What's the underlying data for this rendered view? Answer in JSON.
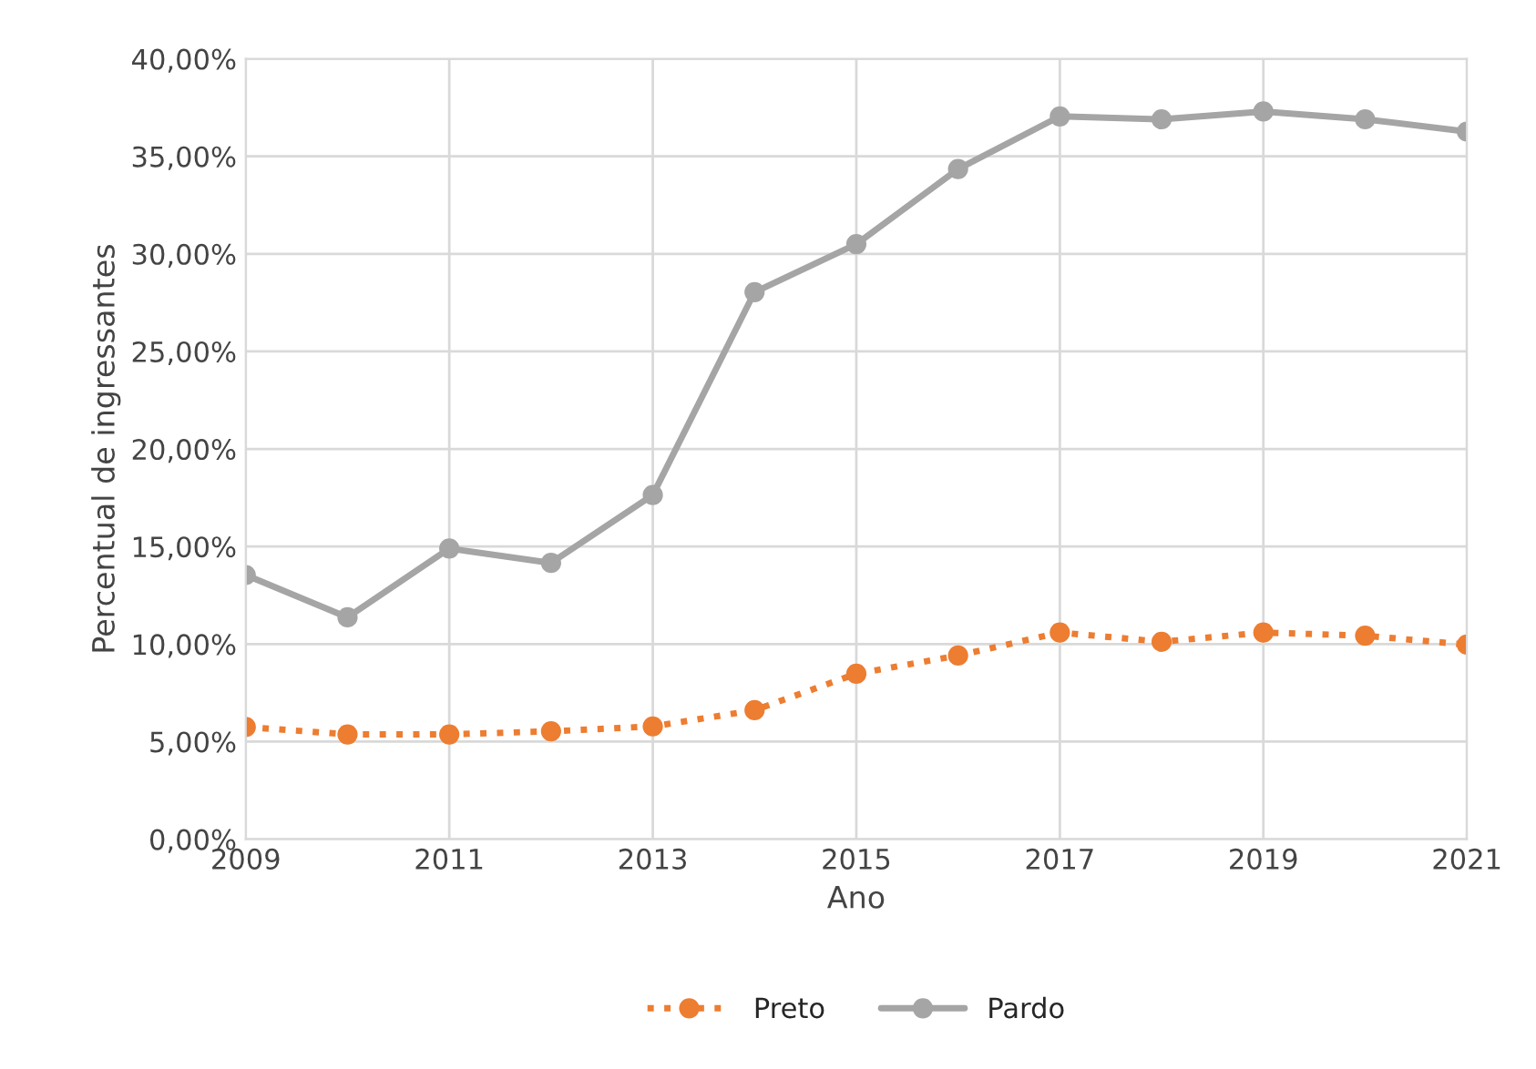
{
  "chart_data": {
    "type": "line",
    "xlabel": "Ano",
    "ylabel": "Percentual de ingressantes",
    "x": [
      2009,
      2010,
      2011,
      2012,
      2013,
      2014,
      2015,
      2016,
      2017,
      2018,
      2019,
      2020,
      2021
    ],
    "series": [
      {
        "name": "Preto",
        "color": "#ed7d31",
        "line_style": "dotted",
        "values": [
          5.75,
          5.37,
          5.37,
          5.53,
          5.78,
          6.61,
          8.48,
          9.41,
          10.59,
          10.12,
          10.59,
          10.43,
          9.97
        ]
      },
      {
        "name": "Pardo",
        "color": "#a5a5a5",
        "line_style": "solid",
        "values": [
          13.54,
          11.37,
          14.9,
          14.16,
          17.64,
          28.04,
          30.5,
          34.35,
          37.05,
          36.9,
          37.3,
          36.9,
          36.27
        ]
      }
    ],
    "xlim": [
      2009,
      2021
    ],
    "xticks": [
      2009,
      2011,
      2013,
      2015,
      2017,
      2019,
      2021
    ],
    "ylim": [
      0,
      40
    ],
    "yticks": [
      {
        "value": 0,
        "label": "0,00%"
      },
      {
        "value": 5,
        "label": "5,00%"
      },
      {
        "value": 10,
        "label": "10,00%"
      },
      {
        "value": 15,
        "label": "15,00%"
      },
      {
        "value": 20,
        "label": "20,00%"
      },
      {
        "value": 25,
        "label": "25,00%"
      },
      {
        "value": 30,
        "label": "30,00%"
      },
      {
        "value": 35,
        "label": "35,00%"
      },
      {
        "value": 40,
        "label": "40,00%"
      }
    ],
    "grid": true,
    "legend": "bottom",
    "marker": "circle"
  }
}
